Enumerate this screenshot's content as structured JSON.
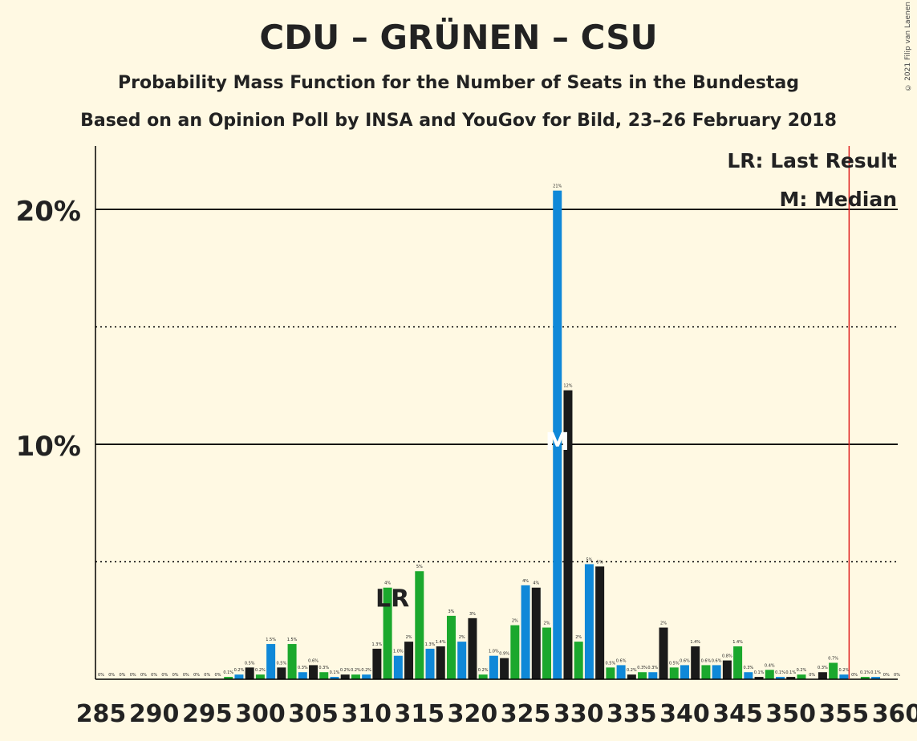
{
  "title": "CDU – GRÜNEN – CSU",
  "subtitle": "Probability Mass Function for the Number of Seats in the Bundestag",
  "subtitle2": "Based on an Opinion Poll by INSA and YouGov for Bild, 23–26 February 2018",
  "copyright": "© 2021 Filip van Laenen",
  "legend": {
    "lr": "LR: Last Result",
    "m": "M: Median"
  },
  "colors": {
    "background": "#FFF9E3",
    "green": "#1BA82D",
    "blue": "#0F88D8",
    "black": "#1A1A1A",
    "threshold": "#E02020"
  },
  "chart_data": {
    "type": "bar",
    "x": [
      285,
      286,
      287,
      288,
      289,
      290,
      291,
      292,
      293,
      294,
      295,
      296,
      297,
      298,
      299,
      300,
      301,
      302,
      303,
      304,
      305,
      306,
      307,
      308,
      309,
      310,
      311,
      312,
      313,
      314,
      315,
      316,
      317,
      318,
      319,
      320,
      321,
      322,
      323,
      324,
      325,
      326,
      327,
      328,
      329,
      330,
      331,
      332,
      333,
      334,
      335,
      336,
      337,
      338,
      339,
      340,
      341,
      342,
      343,
      344,
      345,
      346,
      347,
      348,
      349,
      350,
      351,
      352,
      353,
      354,
      355,
      356,
      357,
      358,
      359,
      360
    ],
    "values": [
      0,
      0,
      0,
      0,
      0,
      0,
      0,
      0,
      0,
      0,
      0,
      0,
      0.1,
      0.2,
      0.5,
      0.2,
      1.5,
      0.5,
      1.5,
      0.3,
      0.6,
      0.3,
      0.1,
      0.2,
      0.2,
      0.2,
      1.3,
      3.9,
      1.0,
      1.6,
      4.6,
      1.3,
      1.4,
      2.7,
      1.6,
      2.6,
      0.2,
      1.0,
      0.9,
      2.3,
      4.0,
      3.9,
      2.2,
      20.8,
      12.3,
      1.6,
      4.9,
      4.8,
      0.5,
      0.6,
      0.2,
      0.3,
      0.3,
      2.2,
      0.5,
      0.6,
      1.4,
      0.6,
      0.6,
      0.8,
      1.4,
      0.3,
      0.1,
      0.4,
      0.1,
      0.1,
      0.2,
      0,
      0.3,
      0.7,
      0.2,
      0,
      0.1,
      0.1,
      0,
      0
    ],
    "labels": [
      "0%",
      "0%",
      "0%",
      "0%",
      "0%",
      "0%",
      "0%",
      "0%",
      "0%",
      "0%",
      "0%",
      "0%",
      "0.1%",
      "0.2%",
      "0.5%",
      "0.2%",
      "1.5%",
      "0.5%",
      "1.5%",
      "0.3%",
      "0.6%",
      "0.3%",
      "0.1%",
      "0.2%",
      "0.2%",
      "0.2%",
      "1.3%",
      "4%",
      "1.0%",
      "2%",
      "5%",
      "1.3%",
      "1.4%",
      "3%",
      "2%",
      "3%",
      "0.2%",
      "1.0%",
      "0.9%",
      "2%",
      "4%",
      "4%",
      "2%",
      "21%",
      "12%",
      "2%",
      "5%",
      "5%",
      "0.5%",
      "0.6%",
      "0.2%",
      "0.3%",
      "0.3%",
      "2%",
      "0.5%",
      "0.6%",
      "1.4%",
      "0.6%",
      "0.6%",
      "0.8%",
      "1.4%",
      "0.3%",
      "0.1%",
      "0.4%",
      "0.1%",
      "0.1%",
      "0.2%",
      "0%",
      "0.3%",
      "0.7%",
      "0.2%",
      "0%",
      "0.1%",
      "0.1%",
      "0%",
      "0%"
    ],
    "color_cycle": [
      "green",
      "blue",
      "black"
    ],
    "xticks": [
      "285",
      "290",
      "295",
      "300",
      "305",
      "310",
      "315",
      "320",
      "325",
      "330",
      "335",
      "340",
      "345",
      "350",
      "355",
      "360"
    ],
    "yticks_major": [
      "10%",
      "20%"
    ],
    "yticks_minor": [
      5,
      15
    ],
    "ylim": [
      0,
      22.7
    ],
    "last_result": 312,
    "last_result_label": "LR",
    "median": 328,
    "median_label": "M",
    "majority_threshold": 355,
    "xlabel": "",
    "ylabel": ""
  }
}
